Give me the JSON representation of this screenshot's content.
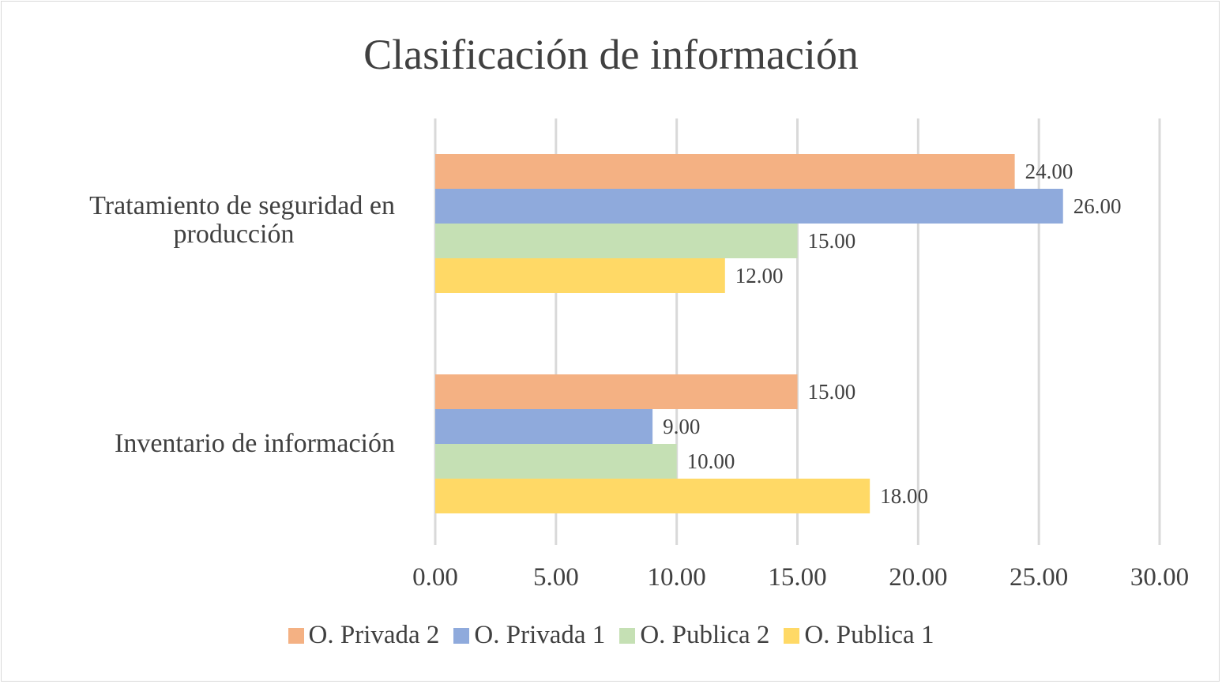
{
  "chart_data": {
    "type": "bar",
    "orientation": "horizontal",
    "title": "Clasificación de información",
    "categories": [
      "Tratamiento de seguridad en producción",
      "Inventario de información"
    ],
    "series": [
      {
        "name": "O. Privada 2",
        "color": "#F4B183",
        "values": [
          24,
          15
        ]
      },
      {
        "name": "O. Privada 1",
        "color": "#8FAADC",
        "values": [
          26,
          9
        ]
      },
      {
        "name": "O. Publica 2",
        "color": "#C5E0B4",
        "values": [
          15,
          10
        ]
      },
      {
        "name": "O. Publica 1",
        "color": "#FFD966",
        "values": [
          12,
          18
        ]
      }
    ],
    "xlim": [
      0,
      30
    ],
    "xticks": [
      "0.00",
      "5.00",
      "10.00",
      "15.00",
      "20.00",
      "25.00",
      "30.00"
    ],
    "data_label_format": "0.00",
    "grid": true,
    "legend_position": "bottom"
  }
}
